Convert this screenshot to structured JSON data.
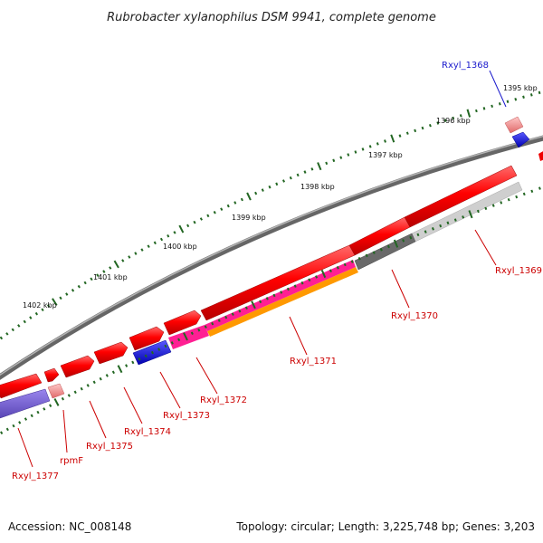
{
  "title": "Rubrobacter xylanophilus DSM 9941, complete genome",
  "footer": {
    "accession": "Accession: NC_008148",
    "topology": "Topology: circular; Length: 3,225,748 bp; Genes: 3,203"
  },
  "ruler": {
    "ticks": [
      {
        "label": "1395 kbp",
        "kbp": 1395
      },
      {
        "label": "1396 kbp",
        "kbp": 1396
      },
      {
        "label": "1397 kbp",
        "kbp": 1397
      },
      {
        "label": "1398 kbp",
        "kbp": 1398
      },
      {
        "label": "1399 kbp",
        "kbp": 1399
      },
      {
        "label": "1400 kbp",
        "kbp": 1400
      },
      {
        "label": "1401 kbp",
        "kbp": 1401
      },
      {
        "label": "1402 kbp",
        "kbp": 1402
      }
    ]
  },
  "genes": [
    {
      "name": "Rxyl_1368",
      "color": "blue"
    },
    {
      "name": "Rxyl_1369",
      "color": "red"
    },
    {
      "name": "Rxyl_1370",
      "color": "red"
    },
    {
      "name": "Rxyl_1371",
      "color": "red"
    },
    {
      "name": "Rxyl_1372",
      "color": "red"
    },
    {
      "name": "Rxyl_1373",
      "color": "red"
    },
    {
      "name": "Rxyl_1374",
      "color": "red"
    },
    {
      "name": "Rxyl_1375",
      "color": "red"
    },
    {
      "name": "rpmF",
      "color": "red"
    },
    {
      "name": "Rxyl_1377",
      "color": "red"
    }
  ],
  "colors": {
    "feature_red": "#ee0000",
    "feature_blue": "#0000ee",
    "magenta": "#ff2299",
    "orange": "#ff9900",
    "dark_gray": "#666666",
    "light_gray": "#cccccc",
    "backbone": "#888888",
    "tick_green": "#226622",
    "label_red": "#cc0000",
    "label_blue": "#1a1acc"
  }
}
